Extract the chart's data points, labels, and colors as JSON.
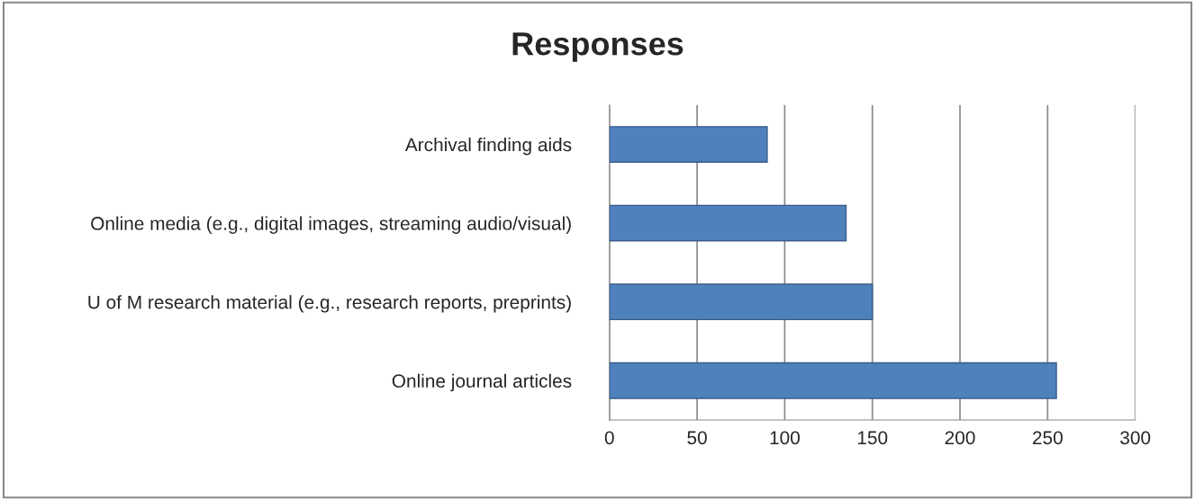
{
  "chart_data": {
    "type": "bar",
    "orientation": "horizontal",
    "title": "Responses",
    "categories": [
      "Archival finding aids",
      "Online media (e.g., digital images, streaming audio/visual)",
      "U of M research material (e.g., research reports, preprints)",
      "Online journal articles"
    ],
    "values": [
      90,
      135,
      150,
      255
    ],
    "color": "#4f81bd",
    "xlim": [
      0,
      300
    ],
    "xticks": [
      0,
      50,
      100,
      150,
      200,
      250,
      300
    ],
    "grid": "x"
  }
}
